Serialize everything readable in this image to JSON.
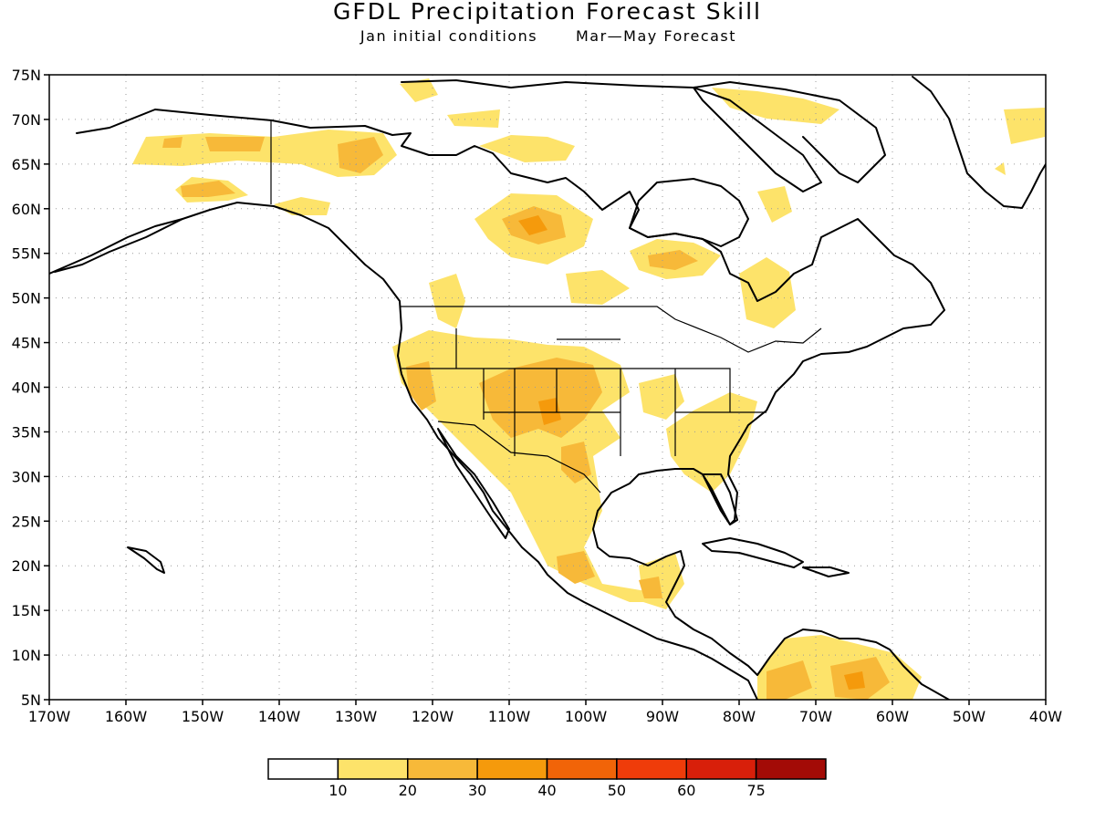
{
  "title": "GFDL Precipitation Forecast Skill",
  "subtitle_left": "Jan initial conditions",
  "subtitle_right": "Mar—May Forecast",
  "lat_labels": [
    "75N",
    "70N",
    "65N",
    "60N",
    "55N",
    "50N",
    "45N",
    "40N",
    "35N",
    "30N",
    "25N",
    "20N",
    "15N",
    "10N",
    "5N"
  ],
  "lon_labels": [
    "170W",
    "160W",
    "150W",
    "140W",
    "130W",
    "120W",
    "110W",
    "100W",
    "90W",
    "80W",
    "70W",
    "60W",
    "50W",
    "40W"
  ],
  "colorbar": {
    "bins": [
      {
        "color": "#ffffff"
      },
      {
        "color": "#fde36a"
      },
      {
        "color": "#f7b939"
      },
      {
        "color": "#f59a0c"
      },
      {
        "color": "#f16408"
      },
      {
        "color": "#ef3c0a"
      },
      {
        "color": "#d81f0a"
      },
      {
        "color": "#a30b06"
      }
    ],
    "labels": [
      "10",
      "20",
      "30",
      "40",
      "50",
      "60",
      "75"
    ]
  },
  "map_region": {
    "lon_min": -170,
    "lon_max": -40,
    "lat_min": 5,
    "lat_max": 75,
    "grid": true
  }
}
